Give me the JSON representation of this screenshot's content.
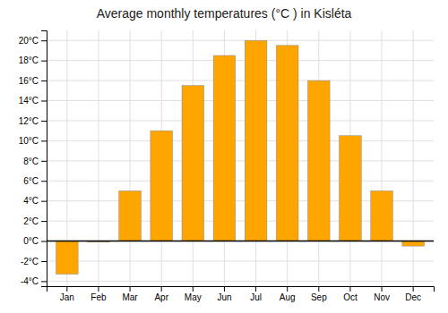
{
  "chart_data": {
    "type": "bar",
    "title": "Average monthly temperatures (°C ) in Kisléta",
    "categories": [
      "Jan",
      "Feb",
      "Mar",
      "Apr",
      "May",
      "Jun",
      "Jul",
      "Aug",
      "Sep",
      "Oct",
      "Nov",
      "Dec"
    ],
    "values": [
      -3.3,
      -0.1,
      5.0,
      11.0,
      15.5,
      18.5,
      20.0,
      19.5,
      16.0,
      10.5,
      5.0,
      -0.5
    ],
    "color": "#FFA500",
    "ylim": [
      -4.5,
      21.0
    ],
    "yticks": [
      {
        "value": -4,
        "label": "-4°C"
      },
      {
        "value": -2,
        "label": "-2°C"
      },
      {
        "value": 0,
        "label": "0°C"
      },
      {
        "value": 2,
        "label": "2°C"
      },
      {
        "value": 4,
        "label": "4°C"
      },
      {
        "value": 6,
        "label": "6°C"
      },
      {
        "value": 8,
        "label": "8°C"
      },
      {
        "value": 10,
        "label": "10°C"
      },
      {
        "value": 12,
        "label": "12°C"
      },
      {
        "value": 14,
        "label": "14°C"
      },
      {
        "value": 16,
        "label": "16°C"
      },
      {
        "value": 18,
        "label": "18°C"
      },
      {
        "value": 20,
        "label": "20°C"
      }
    ],
    "grid": true
  }
}
